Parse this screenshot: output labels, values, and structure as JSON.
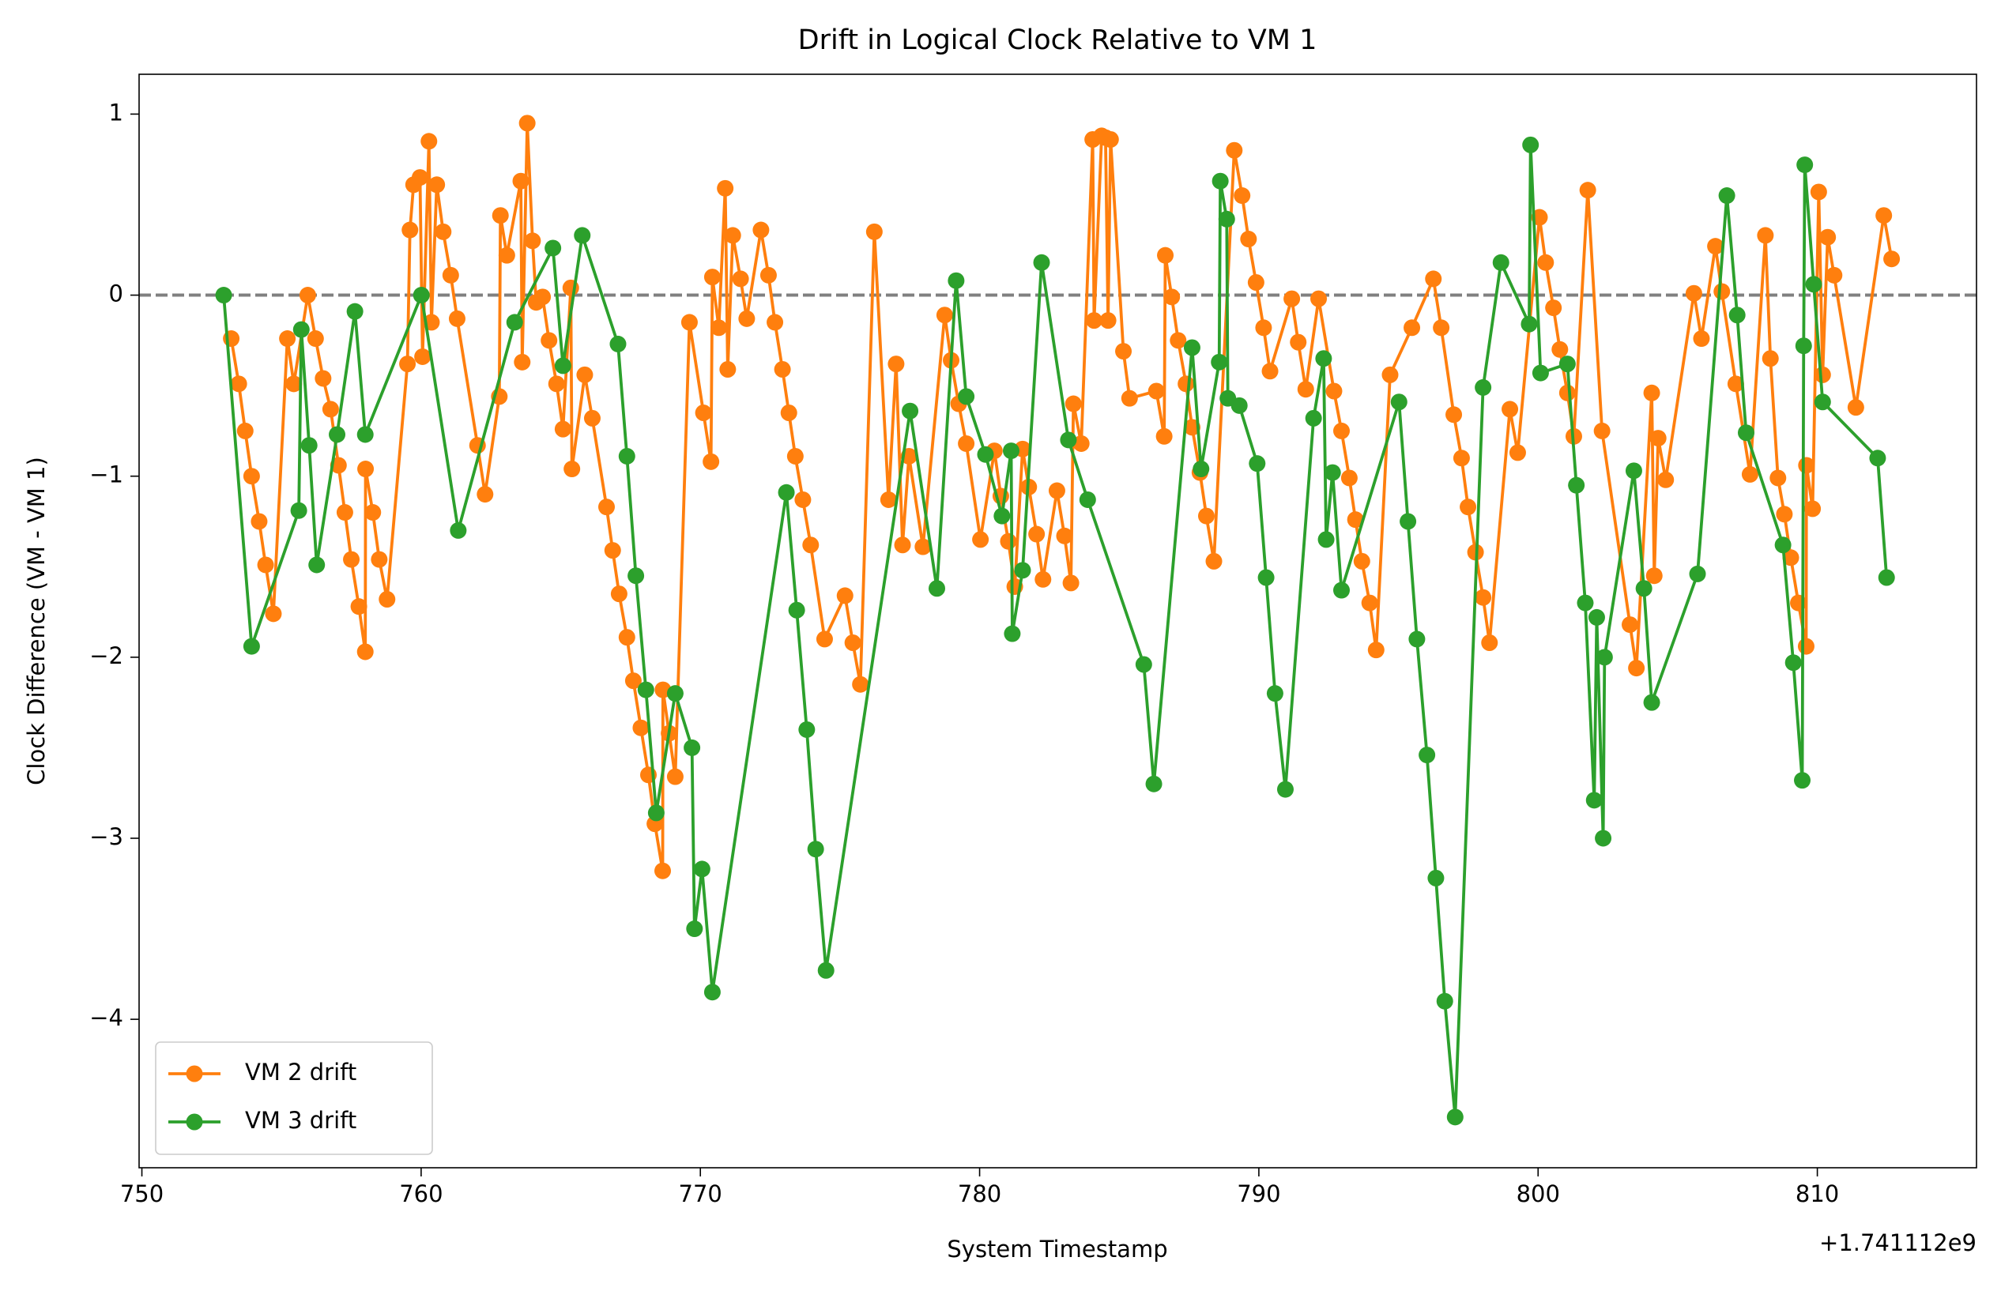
{
  "chart_data": {
    "type": "line",
    "title": "Drift in Logical Clock Relative to VM 1",
    "x_label": "System Timestamp",
    "y_label": "Clock Difference (VM - VM 1)",
    "x_offset_label": "+1.741112e9",
    "xlim": [
      749.9,
      815.7
    ],
    "ylim": [
      -4.82,
      1.22
    ],
    "xticks": [
      750,
      760,
      770,
      780,
      790,
      800,
      810
    ],
    "yticks": [
      {
        "value": -4,
        "label": "−4"
      },
      {
        "value": -3,
        "label": "−3"
      },
      {
        "value": -2,
        "label": "−2"
      },
      {
        "value": -1,
        "label": "−1"
      },
      0,
      1
    ],
    "reference_line": {
      "value": 0,
      "color": "#808080",
      "style": "dashed"
    },
    "legend": "lower left",
    "grid": false,
    "series": [
      {
        "name": "VM 2 drift",
        "color": "#ff7f0e",
        "x": [
          753.2,
          753.47,
          753.7,
          753.93,
          754.2,
          754.43,
          754.71,
          755.21,
          755.44,
          755.94,
          756.22,
          756.49,
          756.76,
          757.04,
          757.27,
          757.5,
          757.77,
          758.0,
          758.01,
          758.27,
          758.5,
          758.78,
          759.51,
          759.6,
          759.73,
          759.96,
          760.05,
          760.28,
          760.37,
          760.56,
          760.79,
          761.06,
          761.29,
          762.02,
          762.29,
          762.8,
          762.84,
          763.07,
          763.57,
          763.62,
          763.8,
          763.99,
          764.12,
          764.35,
          764.58,
          764.85,
          765.08,
          765.36,
          765.4,
          765.86,
          766.13,
          766.64,
          766.86,
          767.09,
          767.37,
          767.6,
          767.87,
          768.14,
          768.37,
          768.65,
          768.66,
          768.88,
          769.1,
          769.61,
          770.11,
          770.38,
          770.43,
          770.66,
          770.89,
          770.98,
          771.16,
          771.44,
          771.66,
          772.17,
          772.44,
          772.67,
          772.94,
          773.17,
          773.4,
          773.67,
          773.95,
          774.45,
          775.18,
          775.46,
          775.73,
          776.23,
          776.74,
          777.01,
          777.24,
          777.47,
          777.97,
          778.75,
          778.98,
          779.25,
          779.52,
          780.03,
          780.53,
          780.76,
          781.03,
          781.26,
          781.54,
          781.76,
          782.04,
          782.27,
          782.77,
          783.04,
          783.27,
          783.36,
          783.64,
          784.05,
          784.1,
          784.37,
          784.51,
          784.6,
          784.69,
          785.15,
          785.37,
          786.33,
          786.61,
          786.65,
          786.88,
          787.11,
          787.39,
          787.61,
          787.89,
          788.12,
          788.39,
          789.12,
          789.4,
          789.63,
          789.9,
          790.17,
          790.4,
          791.18,
          791.41,
          791.68,
          792.14,
          792.69,
          792.96,
          793.24,
          793.46,
          793.69,
          793.97,
          794.2,
          794.7,
          795.48,
          796.25,
          796.53,
          796.98,
          797.26,
          797.49,
          797.76,
          798.03,
          798.26,
          798.99,
          799.27,
          800.05,
          800.27,
          800.55,
          800.78,
          801.05,
          801.28,
          801.78,
          802.29,
          803.29,
          803.52,
          804.07,
          804.16,
          804.3,
          804.57,
          805.58,
          805.85,
          806.35,
          806.58,
          807.08,
          807.59,
          808.14,
          808.32,
          808.59,
          808.82,
          809.05,
          809.32,
          809.6,
          809.61,
          809.83,
          810.05,
          810.19,
          810.37,
          810.6,
          811.38,
          812.38,
          812.66
        ],
        "values": [
          -0.24,
          -0.49,
          -0.75,
          -1.0,
          -1.25,
          -1.49,
          -1.76,
          -0.24,
          -0.49,
          0.0,
          -0.24,
          -0.46,
          -0.63,
          -0.94,
          -1.2,
          -1.46,
          -1.72,
          -1.97,
          -0.96,
          -1.2,
          -1.46,
          -1.68,
          -0.38,
          0.36,
          0.61,
          0.65,
          -0.34,
          0.85,
          -0.15,
          0.61,
          0.35,
          0.11,
          -0.13,
          -0.83,
          -1.1,
          -0.56,
          0.44,
          0.22,
          0.63,
          -0.37,
          0.95,
          0.3,
          -0.04,
          -0.01,
          -0.25,
          -0.49,
          -0.74,
          0.04,
          -0.96,
          -0.44,
          -0.68,
          -1.17,
          -1.41,
          -1.65,
          -1.89,
          -2.13,
          -2.39,
          -2.65,
          -2.92,
          -3.18,
          -2.18,
          -2.42,
          -2.66,
          -0.15,
          -0.65,
          -0.92,
          0.1,
          -0.18,
          0.59,
          -0.41,
          0.33,
          0.09,
          -0.13,
          0.36,
          0.11,
          -0.15,
          -0.41,
          -0.65,
          -0.89,
          -1.13,
          -1.38,
          -1.9,
          -1.66,
          -1.92,
          -2.15,
          0.35,
          -1.13,
          -0.38,
          -1.38,
          -0.89,
          -1.39,
          -0.11,
          -0.36,
          -0.6,
          -0.82,
          -1.35,
          -0.86,
          -1.11,
          -1.36,
          -1.61,
          -0.85,
          -1.06,
          -1.32,
          -1.57,
          -1.08,
          -1.33,
          -1.59,
          -0.6,
          -0.82,
          0.86,
          -0.14,
          0.88,
          0.87,
          -0.14,
          0.86,
          -0.31,
          -0.57,
          -0.53,
          -0.78,
          0.22,
          -0.01,
          -0.25,
          -0.49,
          -0.73,
          -0.98,
          -1.22,
          -1.47,
          0.8,
          0.55,
          0.31,
          0.07,
          -0.18,
          -0.42,
          -0.02,
          -0.26,
          -0.52,
          -0.02,
          -0.53,
          -0.75,
          -1.01,
          -1.24,
          -1.47,
          -1.7,
          -1.96,
          -0.44,
          -0.18,
          0.09,
          -0.18,
          -0.66,
          -0.9,
          -1.17,
          -1.42,
          -1.67,
          -1.92,
          -0.63,
          -0.87,
          0.43,
          0.18,
          -0.07,
          -0.3,
          -0.54,
          -0.78,
          0.58,
          -0.75,
          -1.82,
          -2.06,
          -0.54,
          -1.55,
          -0.79,
          -1.02,
          0.01,
          -0.24,
          0.27,
          0.02,
          -0.49,
          -0.99,
          0.33,
          -0.35,
          -1.01,
          -1.21,
          -1.45,
          -1.7,
          -1.94,
          -0.94,
          -1.18,
          0.57,
          -0.44,
          0.32,
          0.11,
          -0.62,
          0.44,
          0.2
        ]
      },
      {
        "name": "VM 3 drift",
        "color": "#2ca02c",
        "x": [
          752.93,
          753.93,
          755.62,
          755.71,
          755.99,
          756.26,
          756.99,
          757.63,
          758.0,
          760.01,
          761.33,
          763.35,
          764.72,
          765.08,
          765.77,
          767.05,
          767.37,
          767.69,
          768.05,
          768.42,
          769.1,
          769.7,
          769.79,
          770.06,
          770.43,
          773.08,
          773.45,
          773.81,
          774.13,
          774.5,
          777.51,
          778.47,
          779.16,
          779.52,
          780.21,
          780.8,
          781.13,
          781.17,
          781.54,
          782.22,
          783.18,
          783.87,
          785.88,
          786.24,
          787.61,
          787.93,
          788.58,
          788.62,
          788.85,
          788.89,
          789.3,
          789.94,
          790.26,
          790.58,
          790.95,
          791.96,
          792.32,
          792.41,
          792.64,
          792.96,
          795.02,
          795.34,
          795.66,
          796.02,
          796.34,
          796.66,
          797.03,
          798.03,
          798.67,
          799.68,
          799.73,
          800.09,
          801.05,
          801.37,
          801.69,
          802.01,
          802.1,
          802.33,
          802.38,
          803.43,
          803.79,
          804.07,
          805.71,
          806.76,
          807.13,
          807.45,
          808.77,
          809.14,
          809.46,
          809.51,
          809.55,
          809.87,
          810.19,
          812.16,
          812.48
        ],
        "values": [
          0,
          -1.94,
          -1.19,
          -0.19,
          -0.83,
          -1.49,
          -0.77,
          -0.09,
          -0.77,
          0,
          -1.3,
          -0.15,
          0.26,
          -0.39,
          0.33,
          -0.27,
          -0.89,
          -1.55,
          -2.18,
          -2.86,
          -2.2,
          -2.5,
          -3.5,
          -3.17,
          -3.85,
          -1.09,
          -1.74,
          -2.4,
          -3.06,
          -3.73,
          -0.64,
          -1.62,
          0.08,
          -0.56,
          -0.88,
          -1.22,
          -0.86,
          -1.87,
          -1.52,
          0.18,
          -0.8,
          -1.13,
          -2.04,
          -2.7,
          -0.29,
          -0.96,
          -0.37,
          0.63,
          0.42,
          -0.57,
          -0.61,
          -0.93,
          -1.56,
          -2.2,
          -2.73,
          -0.68,
          -0.35,
          -1.35,
          -0.98,
          -1.63,
          -0.59,
          -1.25,
          -1.9,
          -2.54,
          -3.22,
          -3.9,
          -4.54,
          -0.51,
          0.18,
          -0.16,
          0.83,
          -0.43,
          -0.38,
          -1.05,
          -1.7,
          -2.79,
          -1.78,
          -3.0,
          -2.0,
          -0.97,
          -1.62,
          -2.25,
          -1.54,
          0.55,
          -0.11,
          -0.76,
          -1.38,
          -2.03,
          -2.68,
          -0.28,
          0.72,
          0.06,
          -0.59,
          -0.9,
          -1.56
        ]
      }
    ]
  }
}
